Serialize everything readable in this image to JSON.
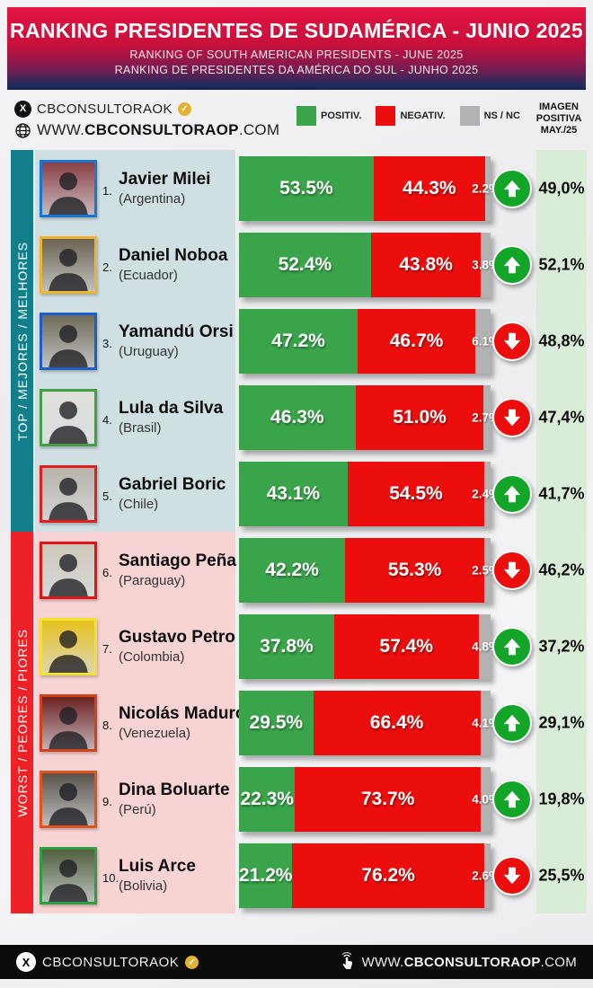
{
  "colors": {
    "positive": "#3aa44a",
    "negative": "#ec0d0d",
    "nsnc": "#b2b2b2",
    "arrow-up": "#13a527",
    "arrow-down": "#ec0d0d",
    "sidebar-top": "#137f8b",
    "sidebar-bottom": "#ee2127",
    "panel-top": "#cfdfe2",
    "panel-bottom": "#f8d3d3",
    "right-col": "#d9ecd7",
    "header-red": "#d8103f",
    "header-blue": "#1e2c5e",
    "footer-bg": "#0b0b0b",
    "badge-gold": "#e3b331"
  },
  "header": {
    "title": "RANKING PRESIDENTES DE SUDAMÉRICA - JUNIO 2025",
    "subtitle_en": "RANKING OF SOUTH AMERICAN PRESIDENTS -  JUNE 2025",
    "subtitle_pt": "RANKING DE PRESIDENTES DA AMÉRICA DO SUL - JUNHO 2025"
  },
  "info_bar": {
    "twitter_handle": "CBCONSULTORAOK",
    "website": {
      "prefix": "WWW.",
      "bold": "CBCONSULTORAOP",
      "suffix": ".COM"
    },
    "legend": [
      {
        "label": "POSITIV."
      },
      {
        "label": "NEGATIV."
      },
      {
        "label": "NS / NC"
      }
    ],
    "right_header": {
      "line1": "IMAGEN",
      "line2": "POSITIVA",
      "line3": "MAY./25"
    }
  },
  "ranking": {
    "sections": [
      {
        "side_label": "TOP / MEJORES / MELHORES",
        "rows": [
          {
            "rank": "1.",
            "name": "Javier Milei",
            "country": "(Argentina)",
            "positive": 53.5,
            "negative": 44.3,
            "nsnc": 2.2,
            "positive_label": "53.5%",
            "negative_label": "44.3%",
            "nsnc_label": "2.2%",
            "trend": "up",
            "prev_label": "49,0%",
            "photo_border": "#1778d2",
            "photo_bg": "#8a4046"
          },
          {
            "rank": "2.",
            "name": "Daniel Noboa",
            "country": "(Ecuador)",
            "positive": 52.4,
            "negative": 43.8,
            "nsnc": 3.8,
            "positive_label": "52.4%",
            "negative_label": "43.8%",
            "nsnc_label": "3.8%",
            "trend": "up",
            "prev_label": "52,1%",
            "photo_border": "#f0b42c",
            "photo_bg": "#6b6350"
          },
          {
            "rank": "3.",
            "name": "Yamandú Orsi",
            "country": "(Uruguay)",
            "positive": 47.2,
            "negative": 46.7,
            "nsnc": 6.1,
            "positive_label": "47.2%",
            "negative_label": "46.7%",
            "nsnc_label": "6.1%",
            "trend": "down",
            "prev_label": "48,8%",
            "photo_border": "#1d5ec9",
            "photo_bg": "#6e6a58"
          },
          {
            "rank": "4.",
            "name": "Lula da Silva",
            "country": "(Brasil)",
            "positive": 46.3,
            "negative": 51.0,
            "nsnc": 2.7,
            "positive_label": "46.3%",
            "negative_label": "51.0%",
            "nsnc_label": "2.7%",
            "trend": "down",
            "prev_label": "47,4%",
            "photo_border": "#43a047",
            "photo_bg": "#dfe0da"
          },
          {
            "rank": "5.",
            "name": "Gabriel Boric",
            "country": "(Chile)",
            "positive": 43.1,
            "negative": 54.5,
            "nsnc": 2.4,
            "positive_label": "43.1%",
            "negative_label": "54.5%",
            "nsnc_label": "2.4%",
            "trend": "up",
            "prev_label": "41,7%",
            "photo_border": "#e01f1f",
            "photo_bg": "#b7b3aa"
          }
        ]
      },
      {
        "side_label": "WORST / PEORES / PIORES",
        "rows": [
          {
            "rank": "6.",
            "name": "Santiago Peña",
            "country": "(Paraguay)",
            "positive": 42.2,
            "negative": 55.3,
            "nsnc": 2.5,
            "positive_label": "42.2%",
            "negative_label": "55.3%",
            "nsnc_label": "2.5%",
            "trend": "down",
            "prev_label": "46,2%",
            "photo_border": "#e01414",
            "photo_bg": "#cdc8bb"
          },
          {
            "rank": "7.",
            "name": "Gustavo Petro",
            "country": "(Colombia)",
            "positive": 37.8,
            "negative": 57.4,
            "nsnc": 4.8,
            "positive_label": "37.8%",
            "negative_label": "57.4%",
            "nsnc_label": "4.8%",
            "trend": "up",
            "prev_label": "37,2%",
            "photo_border": "#f2e130",
            "photo_bg": "#e7c11d"
          },
          {
            "rank": "8.",
            "name": "Nicolás Maduro",
            "country": "(Venezuela)",
            "positive": 29.5,
            "negative": 66.4,
            "nsnc": 4.1,
            "positive_label": "29.5%",
            "negative_label": "66.4%",
            "nsnc_label": "4.1%",
            "trend": "up",
            "prev_label": "29,1%",
            "photo_border": "#d2401c",
            "photo_bg": "#6d2020"
          },
          {
            "rank": "9.",
            "name": "Dina Boluarte",
            "country": "(Perú)",
            "positive": 22.3,
            "negative": 73.7,
            "nsnc": 4.0,
            "positive_label": "22.3%",
            "negative_label": "73.7%",
            "nsnc_label": "4.0%",
            "trend": "up",
            "prev_label": "19,8%",
            "photo_border": "#e0541c",
            "photo_bg": "#59524a"
          },
          {
            "rank": "10.",
            "name": "Luis Arce",
            "country": "(Bolivia)",
            "positive": 21.2,
            "negative": 76.2,
            "nsnc": 2.6,
            "positive_label": "21.2%",
            "negative_label": "76.2%",
            "nsnc_label": "2.6%",
            "trend": "down",
            "prev_label": "25,5%",
            "photo_border": "#2e9e42",
            "photo_bg": "#51603f"
          }
        ]
      }
    ]
  },
  "footer": {
    "twitter_handle": "CBCONSULTORAOK",
    "website": {
      "prefix": "WWW.",
      "bold": "CBCONSULTORAOP",
      "suffix": ".COM"
    }
  },
  "chart_data": {
    "type": "bar",
    "subtype": "horizontal-stacked",
    "title": "RANKING PRESIDENTES DE SUDAMÉRICA - JUNIO 2025",
    "categories": [
      "Javier Milei (Argentina)",
      "Daniel Noboa (Ecuador)",
      "Yamandú Orsi (Uruguay)",
      "Lula da Silva (Brasil)",
      "Gabriel Boric (Chile)",
      "Santiago Peña (Paraguay)",
      "Gustavo Petro (Colombia)",
      "Nicolás Maduro (Venezuela)",
      "Dina Boluarte (Perú)",
      "Luis Arce (Bolivia)"
    ],
    "series": [
      {
        "name": "POSITIV.",
        "color": "#3aa44a",
        "values": [
          53.5,
          52.4,
          47.2,
          46.3,
          43.1,
          42.2,
          37.8,
          29.5,
          22.3,
          21.2
        ]
      },
      {
        "name": "NEGATIV.",
        "color": "#ec0d0d",
        "values": [
          44.3,
          43.8,
          46.7,
          51.0,
          54.5,
          55.3,
          57.4,
          66.4,
          73.7,
          76.2
        ]
      },
      {
        "name": "NS / NC",
        "color": "#b2b2b2",
        "values": [
          2.2,
          3.8,
          6.1,
          2.7,
          2.4,
          2.5,
          4.8,
          4.1,
          4.0,
          2.6
        ]
      }
    ],
    "trend_vs_prev_month": [
      "up",
      "up",
      "down",
      "down",
      "up",
      "down",
      "up",
      "up",
      "up",
      "down"
    ],
    "prev_month_positive": {
      "label": "IMAGEN POSITIVA MAY./25",
      "values": [
        49.0,
        52.1,
        48.8,
        47.4,
        41.7,
        46.2,
        37.2,
        29.1,
        19.8,
        25.5
      ]
    },
    "groups": [
      {
        "label": "TOP / MEJORES / MELHORES",
        "rows": [
          0,
          1,
          2,
          3,
          4
        ]
      },
      {
        "label": "WORST / PEORES / PIORES",
        "rows": [
          5,
          6,
          7,
          8,
          9
        ]
      }
    ],
    "xlim": [
      0,
      100
    ],
    "legend_position": "top",
    "grid": false
  }
}
